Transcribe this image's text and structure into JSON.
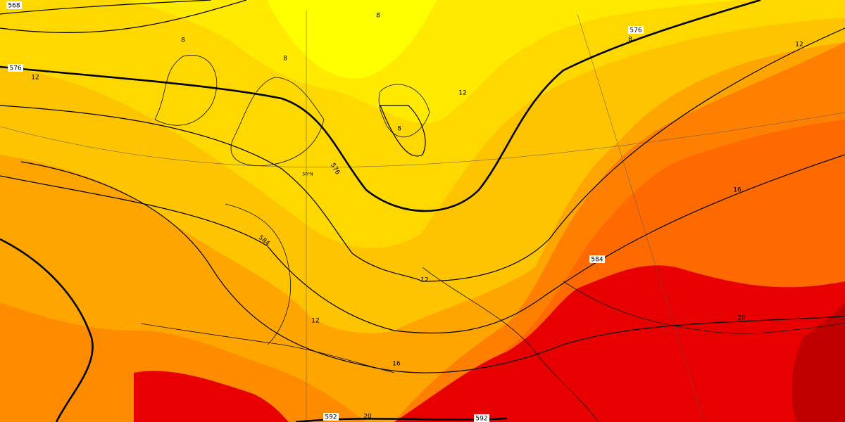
{
  "map": {
    "geopotential_labels": [
      "568",
      "576",
      "576",
      "576",
      "584",
      "584",
      "592",
      "592"
    ],
    "temperature_labels": [
      "8",
      "8",
      "8",
      "8",
      "8",
      "12",
      "12",
      "12",
      "12",
      "12",
      "16",
      "16",
      "20",
      "20"
    ],
    "latitude_label": "50°N"
  }
}
